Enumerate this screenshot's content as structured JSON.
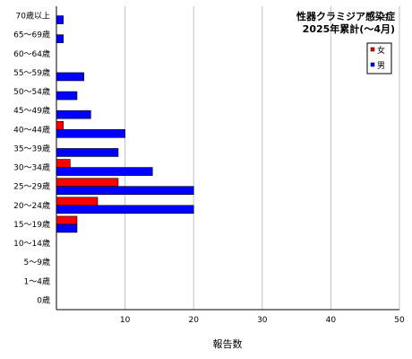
{
  "chart_data": {
    "type": "bar",
    "orientation": "horizontal",
    "title": "性器クラミジア感染症",
    "subtitle": "2025年累計(〜4月)",
    "xlabel": "報告数",
    "ylabel": "",
    "xlim": [
      0,
      50
    ],
    "x_ticks": [
      10,
      20,
      30,
      40,
      50
    ],
    "grid": "vertical",
    "legend_position": "top-right",
    "categories": [
      "70歳以上",
      "65〜69歳",
      "60〜64歳",
      "55〜59歳",
      "50〜54歳",
      "45〜49歳",
      "40〜44歳",
      "35〜39歳",
      "30〜34歳",
      "25〜29歳",
      "20〜24歳",
      "15〜19歳",
      "10〜14歳",
      "5〜9歳",
      "1〜4歳",
      "0歳"
    ],
    "series": [
      {
        "name": "女",
        "color": "#ff0000",
        "values": [
          0,
          0,
          0,
          0,
          0,
          0,
          1,
          0,
          2,
          9,
          6,
          3,
          0,
          0,
          0,
          0
        ]
      },
      {
        "name": "男",
        "color": "#0000ff",
        "values": [
          1,
          1,
          0,
          4,
          3,
          5,
          10,
          9,
          14,
          20,
          20,
          3,
          0,
          0,
          0,
          0
        ]
      }
    ]
  }
}
